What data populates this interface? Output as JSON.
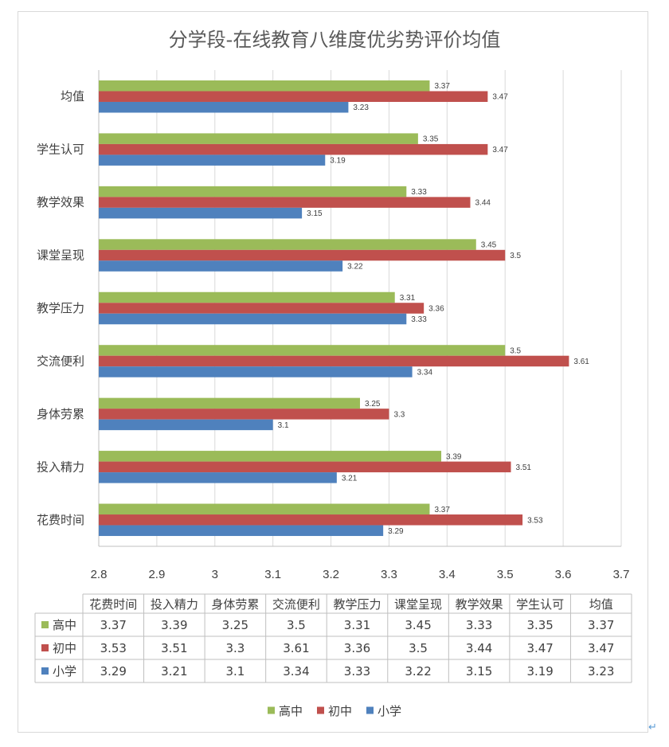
{
  "chart_data": {
    "type": "bar",
    "orientation": "horizontal",
    "title": "分学段-在线教育八维度优劣势评价均值",
    "categories": [
      "花费时间",
      "投入精力",
      "身体劳累",
      "交流便利",
      "教学压力",
      "课堂呈现",
      "教学效果",
      "学生认可",
      "均值"
    ],
    "series": [
      {
        "name": "高中",
        "color": "#9bbb59",
        "values": [
          3.37,
          3.39,
          3.25,
          3.5,
          3.31,
          3.45,
          3.33,
          3.35,
          3.37
        ]
      },
      {
        "name": "初中",
        "color": "#c0504d",
        "values": [
          3.53,
          3.51,
          3.3,
          3.61,
          3.36,
          3.5,
          3.44,
          3.47,
          3.47
        ]
      },
      {
        "name": "小学",
        "color": "#4f81bd",
        "values": [
          3.29,
          3.21,
          3.1,
          3.34,
          3.33,
          3.22,
          3.15,
          3.19,
          3.23
        ]
      }
    ],
    "xlim": [
      2.8,
      3.7
    ],
    "ticks": [
      "2.8",
      "2.9",
      "3",
      "3.1",
      "3.2",
      "3.3",
      "3.4",
      "3.5",
      "3.6",
      "3.7"
    ],
    "grid": true,
    "legend": "bottom",
    "data_table": true
  },
  "para_mark": "↵"
}
